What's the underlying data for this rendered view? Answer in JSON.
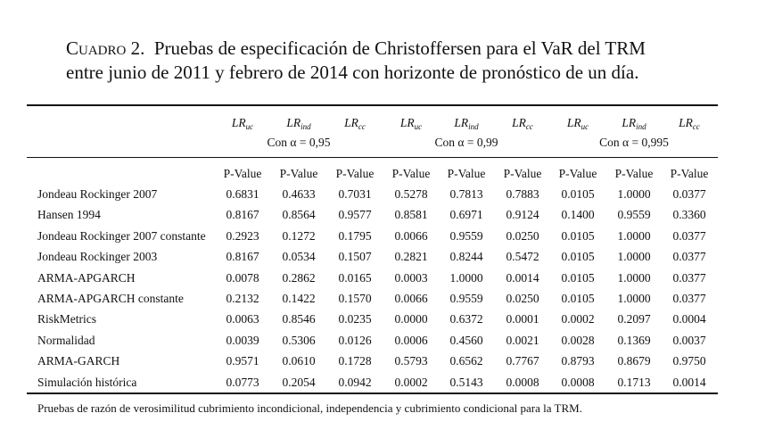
{
  "caption": {
    "label": "Cuadro 2.",
    "lines": [
      "Pruebas de especificación de Christoffersen para el VaR del TRM",
      "entre junio de 2011 y febrero de 2014 con horizonte de pronóstico de un día."
    ]
  },
  "table": {
    "stat_headers": [
      {
        "main": "LR",
        "sub": "uc"
      },
      {
        "main": "LR",
        "sub": "ind"
      },
      {
        "main": "LR",
        "sub": "cc"
      },
      {
        "main": "LR",
        "sub": "uc"
      },
      {
        "main": "LR",
        "sub": "ind"
      },
      {
        "main": "LR",
        "sub": "cc"
      },
      {
        "main": "LR",
        "sub": "uc"
      },
      {
        "main": "LR",
        "sub": "ind"
      },
      {
        "main": "LR",
        "sub": "cc"
      }
    ],
    "groups": [
      "Con α = 0,95",
      "Con α = 0,99",
      "Con α = 0,995"
    ],
    "sub_headers": [
      "P-Value",
      "P-Value",
      "P-Value",
      "P-Value",
      "P-Value",
      "P-Value",
      "P-Value",
      "P-Value",
      "P-Value"
    ],
    "rows": [
      [
        "Jondeau Rockinger 2007",
        "0.6831",
        "0.4633",
        "0.7031",
        "0.5278",
        "0.7813",
        "0.7883",
        "0.0105",
        "1.0000",
        "0.0377"
      ],
      [
        "Hansen 1994",
        "0.8167",
        "0.8564",
        "0.9577",
        "0.8581",
        "0.6971",
        "0.9124",
        "0.1400",
        "0.9559",
        "0.3360"
      ],
      [
        "Jondeau Rockinger 2007 constante",
        "0.2923",
        "0.1272",
        "0.1795",
        "0.0066",
        "0.9559",
        "0.0250",
        "0.0105",
        "1.0000",
        "0.0377"
      ],
      [
        "Jondeau Rockinger 2003",
        "0.8167",
        "0.0534",
        "0.1507",
        "0.2821",
        "0.8244",
        "0.5472",
        "0.0105",
        "1.0000",
        "0.0377"
      ],
      [
        "ARMA-APGARCH",
        "0.0078",
        "0.2862",
        "0.0165",
        "0.0003",
        "1.0000",
        "0.0014",
        "0.0105",
        "1.0000",
        "0.0377"
      ],
      [
        "ARMA-APGARCH constante",
        "0.2132",
        "0.1422",
        "0.1570",
        "0.0066",
        "0.9559",
        "0.0250",
        "0.0105",
        "1.0000",
        "0.0377"
      ],
      [
        "RiskMetrics",
        "0.0063",
        "0.8546",
        "0.0235",
        "0.0000",
        "0.6372",
        "0.0001",
        "0.0002",
        "0.2097",
        "0.0004"
      ],
      [
        "Normalidad",
        "0.0039",
        "0.5306",
        "0.0126",
        "0.0006",
        "0.4560",
        "0.0021",
        "0.0028",
        "0.1369",
        "0.0037"
      ],
      [
        "ARMA-GARCH",
        "0.9571",
        "0.0610",
        "0.1728",
        "0.5793",
        "0.6562",
        "0.7767",
        "0.8793",
        "0.8679",
        "0.9750"
      ],
      [
        "Simulación histórica",
        "0.0773",
        "0.2054",
        "0.0942",
        "0.0002",
        "0.5143",
        "0.0008",
        "0.0008",
        "0.1713",
        "0.0014"
      ]
    ]
  },
  "footnote": "Pruebas de razón de verosimilitud cubrimiento incondicional, independencia y cubrimiento condicional para la TRM."
}
